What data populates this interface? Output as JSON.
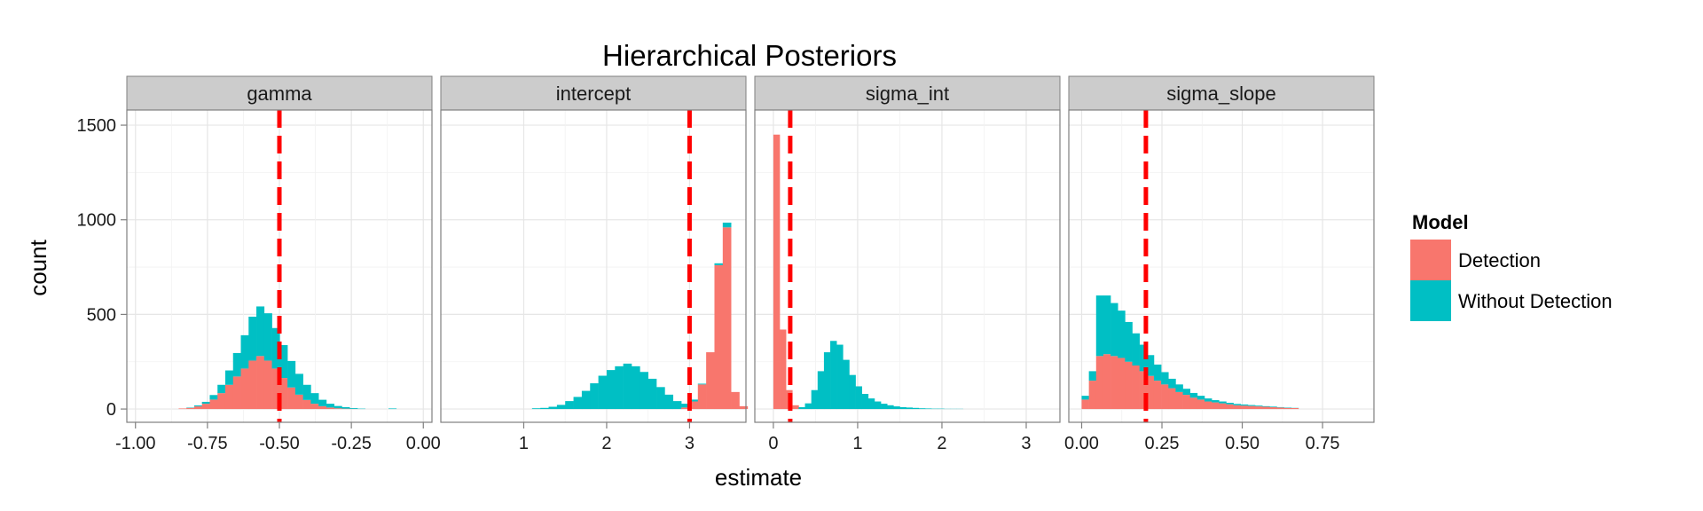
{
  "chart_data": {
    "type": "histogram",
    "title": "Hierarchical Posteriors",
    "xlabel": "estimate",
    "ylabel": "count",
    "ylim": [
      -70,
      1580
    ],
    "yticks": [
      0,
      500,
      1000,
      1500
    ],
    "y_tick_labels": [
      "0",
      "500",
      "1000",
      "1500"
    ],
    "stacked": true,
    "grid": true,
    "legend": {
      "title": "Model",
      "position": "right",
      "entries": [
        {
          "label": "Detection",
          "color": "#F8766D"
        },
        {
          "label": "Without Detection",
          "color": "#00BFC4"
        }
      ]
    },
    "reference_line_color": "#FF0000",
    "panels": [
      {
        "name": "gamma",
        "xlim": [
          -1.03,
          0.03
        ],
        "xticks": [
          -1.0,
          -0.75,
          -0.5,
          -0.25,
          0.0
        ],
        "x_tick_labels": [
          "-1.00",
          "-0.75",
          "-0.50",
          "-0.25",
          "0.00"
        ],
        "reference_line": -0.5,
        "bin_start": -0.85,
        "bin_width": 0.027,
        "detection": [
          3,
          6,
          14,
          28,
          50,
          84,
          128,
          172,
          214,
          256,
          280,
          256,
          214,
          164,
          114,
          76,
          48,
          28,
          15,
          8,
          4,
          2,
          1,
          0,
          0,
          0,
          0,
          0,
          0,
          0
        ],
        "without_detection": [
          0,
          2,
          5,
          10,
          24,
          44,
          76,
          124,
          176,
          232,
          262,
          250,
          214,
          174,
          140,
          110,
          80,
          56,
          34,
          20,
          12,
          8,
          4,
          2,
          0,
          0,
          0,
          3,
          0,
          0
        ]
      },
      {
        "name": "intercept",
        "xlim": [
          0.0,
          3.68
        ],
        "xticks": [
          1,
          2,
          3
        ],
        "x_tick_labels": [
          "1",
          "2",
          "3"
        ],
        "reference_line": 3.0,
        "bin_start": 1.1,
        "bin_width": 0.1,
        "detection": [
          0,
          0,
          0,
          0,
          0,
          0,
          0,
          0,
          0,
          0,
          0,
          0,
          0,
          0,
          0,
          0,
          0,
          0,
          8,
          40,
          130,
          300,
          760,
          960,
          90,
          15,
          0
        ],
        "without_detection": [
          4,
          6,
          12,
          22,
          42,
          64,
          96,
          136,
          176,
          206,
          226,
          240,
          226,
          196,
          160,
          116,
          76,
          42,
          20,
          10,
          4,
          0,
          10,
          25,
          0,
          0,
          0
        ]
      },
      {
        "name": "sigma_int",
        "xlim": [
          -0.22,
          3.4
        ],
        "xticks": [
          0,
          1,
          2,
          3
        ],
        "x_tick_labels": [
          "0",
          "1",
          "2",
          "3"
        ],
        "reference_line": 0.2,
        "bin_start": 0.0,
        "bin_width": 0.075,
        "detection": [
          1450,
          420,
          100,
          20,
          0,
          0,
          0,
          0,
          0,
          0,
          0,
          0,
          0,
          0,
          0,
          0,
          0,
          0,
          0,
          0,
          0,
          0,
          0,
          0,
          0,
          0,
          0,
          0,
          0,
          0,
          0,
          0
        ],
        "without_detection": [
          0,
          0,
          0,
          0,
          10,
          30,
          100,
          200,
          300,
          360,
          340,
          260,
          180,
          120,
          80,
          56,
          40,
          28,
          20,
          14,
          10,
          8,
          6,
          4,
          3,
          2,
          2,
          1,
          1,
          1,
          0,
          0
        ]
      },
      {
        "name": "sigma_slope",
        "xlim": [
          -0.04,
          0.91
        ],
        "xticks": [
          0.0,
          0.25,
          0.5,
          0.75
        ],
        "x_tick_labels": [
          "0.00",
          "0.25",
          "0.50",
          "0.75"
        ],
        "reference_line": 0.2,
        "bin_start": 0.0,
        "bin_width": 0.0225,
        "detection": [
          50,
          150,
          280,
          290,
          280,
          270,
          250,
          230,
          200,
          175,
          150,
          130,
          110,
          90,
          75,
          60,
          50,
          40,
          35,
          30,
          25,
          20,
          18,
          16,
          14,
          12,
          10,
          8,
          6,
          5
        ],
        "without_detection": [
          20,
          50,
          320,
          310,
          280,
          250,
          210,
          170,
          140,
          110,
          85,
          65,
          50,
          40,
          32,
          25,
          20,
          16,
          12,
          10,
          8,
          7,
          6,
          5,
          4,
          3,
          3,
          2,
          2,
          1
        ]
      }
    ]
  }
}
